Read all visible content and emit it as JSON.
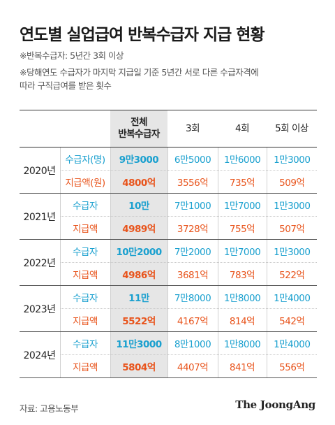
{
  "title": "연도별 실업급여 반복수급자 지급 현황",
  "notes": [
    "※반복수급자: 5년간 3회 이상",
    "※당해연도 수급자가 마지막 지급일 기준 5년간 서로 다른 수급자격에",
    "따라 구직급여를 받은 횟수"
  ],
  "table": {
    "headers": [
      "전체\n반복수급자",
      "3회",
      "4회",
      "5회 이상"
    ],
    "header_total_line1": "전체",
    "header_total_line2": "반복수급자",
    "rows": [
      {
        "year": "2020년",
        "recv_label": "수급자(명)",
        "amt_label": "지급액(원)",
        "recv": [
          "9만3000",
          "6만5000",
          "1만6000",
          "1만3000"
        ],
        "amt": [
          "4800억",
          "3556억",
          "735억",
          "509억"
        ]
      },
      {
        "year": "2021년",
        "recv_label": "수급자",
        "amt_label": "지급액",
        "recv": [
          "10만",
          "7만1000",
          "1만7000",
          "1만3000"
        ],
        "amt": [
          "4989억",
          "3728억",
          "755억",
          "507억"
        ]
      },
      {
        "year": "2022년",
        "recv_label": "수급자",
        "amt_label": "지급액",
        "recv": [
          "10만2000",
          "7만2000",
          "1만7000",
          "1만3000"
        ],
        "amt": [
          "4986억",
          "3681억",
          "783억",
          "522억"
        ]
      },
      {
        "year": "2023년",
        "recv_label": "수급자",
        "amt_label": "지급액",
        "recv": [
          "11만",
          "7만8000",
          "1만8000",
          "1만4000"
        ],
        "amt": [
          "5522억",
          "4167억",
          "814억",
          "542억"
        ]
      },
      {
        "year": "2024년",
        "recv_label": "수급자",
        "amt_label": "지급액",
        "recv": [
          "11만3000",
          "8만1000",
          "1만8000",
          "1만4000"
        ],
        "amt": [
          "5804억",
          "4407억",
          "841억",
          "556억"
        ]
      }
    ]
  },
  "source": "자료: 고용노동부",
  "brand": "The JoongAng",
  "colors": {
    "recipients": "#1aa0cf",
    "amount": "#e8541c",
    "total_bg": "#e6e6e6"
  }
}
